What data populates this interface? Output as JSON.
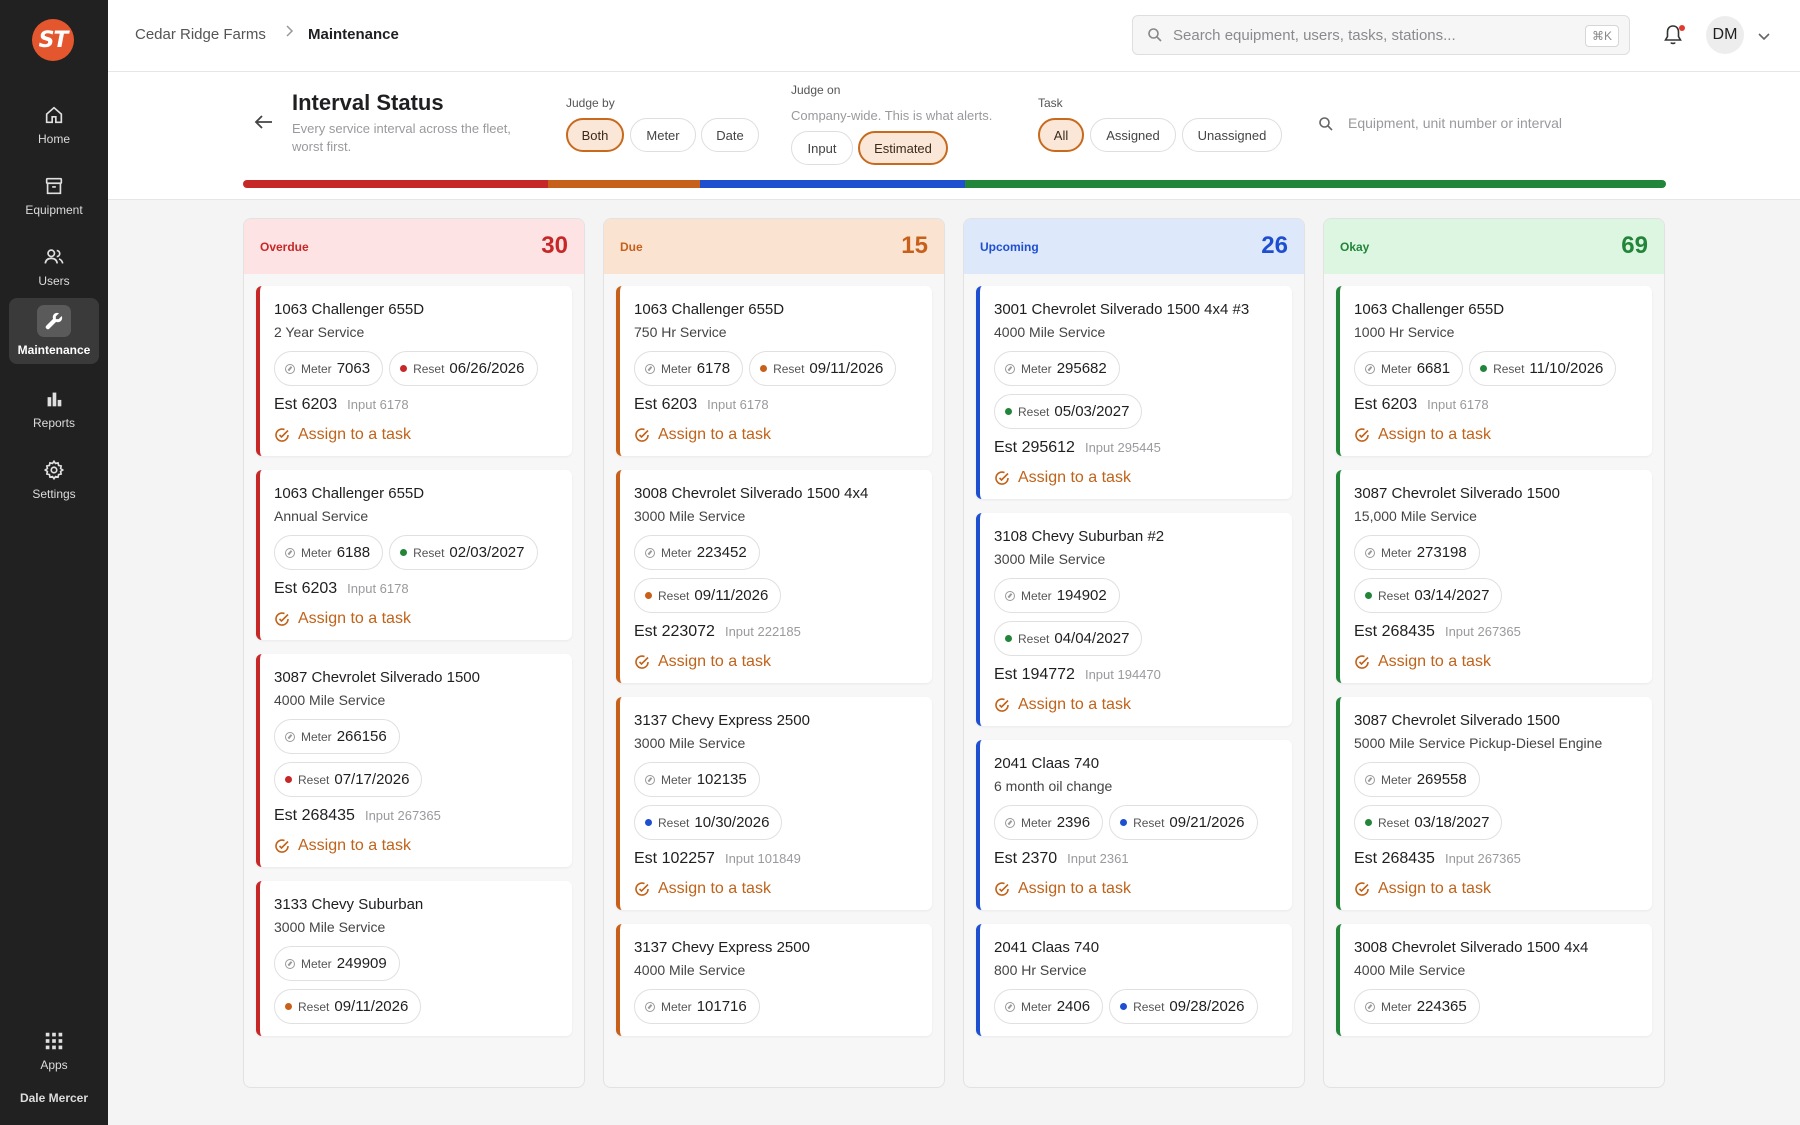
{
  "app": {
    "logo_text": "ST",
    "user_name": "Dale Mercer",
    "avatar_initials": "DM"
  },
  "nav": [
    {
      "label": "Home",
      "icon": "home-icon"
    },
    {
      "label": "Equipment",
      "icon": "archive-icon"
    },
    {
      "label": "Users",
      "icon": "users-icon"
    },
    {
      "label": "Maintenance",
      "icon": "wrench-icon",
      "active": true
    },
    {
      "label": "Reports",
      "icon": "bar-chart-icon"
    },
    {
      "label": "Settings",
      "icon": "gear-icon"
    },
    {
      "label": "Apps",
      "icon": "grid-icon"
    }
  ],
  "topbar": {
    "breadcrumb_root": "Cedar Ridge Farms",
    "breadcrumb_sep": ">",
    "breadcrumb_current": "Maintenance",
    "search_placeholder": "Search equipment, users, tasks, stations...",
    "search_shortcut": "⌘K"
  },
  "header": {
    "title": "Interval Status",
    "subtitle": "Every service interval across the fleet, worst first.",
    "judge_by_label": "Judge by",
    "judge_by_options": [
      "Both",
      "Meter",
      "Date"
    ],
    "judge_by_selected": "Both",
    "judge_on_label": "Judge on",
    "judge_on_note": "Company-wide. This is what alerts.",
    "judge_on_options": [
      "Input",
      "Estimated"
    ],
    "judge_on_selected": "Estimated",
    "task_label": "Task",
    "task_options": [
      "All",
      "Assigned",
      "Unassigned"
    ],
    "task_selected": "All",
    "filter_placeholder": "Equipment, unit number or interval"
  },
  "status_bar": {
    "segments": [
      {
        "status": "Overdue",
        "count": 30,
        "color": "#c62828"
      },
      {
        "status": "Due",
        "count": 15,
        "color": "#c7601a"
      },
      {
        "status": "Upcoming",
        "count": 26,
        "color": "#1e4fd0"
      },
      {
        "status": "Okay",
        "count": 69,
        "color": "#23853a"
      }
    ]
  },
  "colors": {
    "accent": "#c0631a",
    "overdue": "#c62828",
    "due": "#c7601a",
    "upcoming": "#1e4fd0",
    "okay": "#23853a"
  },
  "columns": [
    {
      "title": "Overdue",
      "count": "30",
      "color": "#c62828",
      "head_bg": "#fde3e3",
      "title_color": "#c62828",
      "cards": [
        {
          "title": "1063 Challenger 655D",
          "sub": "2 Year Service",
          "meter_label": "Meter",
          "meter": "7063",
          "reset_label": "Reset",
          "reset": "06/26/2026",
          "reset_color": "#c62828",
          "est": "Est 6203",
          "input": "Input 6178",
          "assign": "Assign to a task",
          "wrap": false
        },
        {
          "title": "1063 Challenger 655D",
          "sub": "Annual Service",
          "meter_label": "Meter",
          "meter": "6188",
          "reset_label": "Reset",
          "reset": "02/03/2027",
          "reset_color": "#23853a",
          "est": "Est 6203",
          "input": "Input 6178",
          "assign": "Assign to a task",
          "wrap": false
        },
        {
          "title": "3087 Chevrolet Silverado 1500",
          "sub": "4000 Mile Service",
          "meter_label": "Meter",
          "meter": "266156",
          "reset_label": "Reset",
          "reset": "07/17/2026",
          "reset_color": "#c62828",
          "est": "Est 268435",
          "input": "Input 267365",
          "assign": "Assign to a task",
          "wrap": true
        },
        {
          "title": "3133 Chevy Suburban",
          "sub": "3000 Mile Service",
          "meter_label": "Meter",
          "meter": "249909",
          "reset_label": "Reset",
          "reset": "09/11/2026",
          "reset_color": "#c7601a",
          "est": "",
          "input": "",
          "assign": "",
          "wrap": true
        }
      ]
    },
    {
      "title": "Due",
      "count": "15",
      "color": "#c7601a",
      "head_bg": "#fbe3d2",
      "title_color": "#c7601a",
      "cards": [
        {
          "title": "1063 Challenger 655D",
          "sub": "750 Hr Service",
          "meter_label": "Meter",
          "meter": "6178",
          "reset_label": "Reset",
          "reset": "09/11/2026",
          "reset_color": "#c7601a",
          "est": "Est 6203",
          "input": "Input 6178",
          "assign": "Assign to a task",
          "wrap": false
        },
        {
          "title": "3008 Chevrolet Silverado 1500 4x4",
          "sub": "3000 Mile Service",
          "meter_label": "Meter",
          "meter": "223452",
          "reset_label": "Reset",
          "reset": "09/11/2026",
          "reset_color": "#c7601a",
          "est": "Est 223072",
          "input": "Input 222185",
          "assign": "Assign to a task",
          "wrap": true
        },
        {
          "title": "3137 Chevy Express 2500",
          "sub": "3000 Mile Service",
          "meter_label": "Meter",
          "meter": "102135",
          "reset_label": "Reset",
          "reset": "10/30/2026",
          "reset_color": "#1e4fd0",
          "est": "Est 102257",
          "input": "Input 101849",
          "assign": "Assign to a task",
          "wrap": true
        },
        {
          "title": "3137 Chevy Express 2500",
          "sub": "4000 Mile Service",
          "meter_label": "Meter",
          "meter": "101716",
          "reset_label": "",
          "reset": "",
          "reset_color": "#c7601a",
          "est": "",
          "input": "",
          "assign": "",
          "wrap": true
        }
      ]
    },
    {
      "title": "Upcoming",
      "count": "26",
      "color": "#1e4fd0",
      "head_bg": "#dde9fb",
      "title_color": "#1e4fd0",
      "cards": [
        {
          "title": "3001 Chevrolet Silverado 1500 4x4 #3",
          "sub": "4000 Mile Service",
          "meter_label": "Meter",
          "meter": "295682",
          "reset_label": "Reset",
          "reset": "05/03/2027",
          "reset_color": "#23853a",
          "est": "Est 295612",
          "input": "Input 295445",
          "assign": "Assign to a task",
          "wrap": true
        },
        {
          "title": "3108 Chevy Suburban #2",
          "sub": "3000 Mile Service",
          "meter_label": "Meter",
          "meter": "194902",
          "reset_label": "Reset",
          "reset": "04/04/2027",
          "reset_color": "#23853a",
          "est": "Est 194772",
          "input": "Input 194470",
          "assign": "Assign to a task",
          "wrap": true
        },
        {
          "title": "2041 Claas 740",
          "sub": "6 month oil change",
          "meter_label": "Meter",
          "meter": "2396",
          "reset_label": "Reset",
          "reset": "09/21/2026",
          "reset_color": "#1e4fd0",
          "est": "Est 2370",
          "input": "Input 2361",
          "assign": "Assign to a task",
          "wrap": false
        },
        {
          "title": "2041 Claas 740",
          "sub": "800 Hr Service",
          "meter_label": "Meter",
          "meter": "2406",
          "reset_label": "Reset",
          "reset": "09/28/2026",
          "reset_color": "#1e4fd0",
          "est": "",
          "input": "",
          "assign": "",
          "wrap": false
        }
      ]
    },
    {
      "title": "Okay",
      "count": "69",
      "color": "#23853a",
      "head_bg": "#dcf6e2",
      "title_color": "#23853a",
      "cards": [
        {
          "title": "1063 Challenger 655D",
          "sub": "1000 Hr Service",
          "meter_label": "Meter",
          "meter": "6681",
          "reset_label": "Reset",
          "reset": "11/10/2026",
          "reset_color": "#23853a",
          "est": "Est 6203",
          "input": "Input 6178",
          "assign": "Assign to a task",
          "wrap": false
        },
        {
          "title": "3087 Chevrolet Silverado 1500",
          "sub": "15,000 Mile Service",
          "meter_label": "Meter",
          "meter": "273198",
          "reset_label": "Reset",
          "reset": "03/14/2027",
          "reset_color": "#23853a",
          "est": "Est 268435",
          "input": "Input 267365",
          "assign": "Assign to a task",
          "wrap": true
        },
        {
          "title": "3087 Chevrolet Silverado 1500",
          "sub": "5000 Mile Service Pickup-Diesel Engine",
          "meter_label": "Meter",
          "meter": "269558",
          "reset_label": "Reset",
          "reset": "03/18/2027",
          "reset_color": "#23853a",
          "est": "Est 268435",
          "input": "Input 267365",
          "assign": "Assign to a task",
          "wrap": true
        },
        {
          "title": "3008 Chevrolet Silverado 1500 4x4",
          "sub": "4000 Mile Service",
          "meter_label": "Meter",
          "meter": "224365",
          "reset_label": "",
          "reset": "",
          "reset_color": "#23853a",
          "est": "",
          "input": "",
          "assign": "",
          "wrap": true
        }
      ]
    }
  ]
}
